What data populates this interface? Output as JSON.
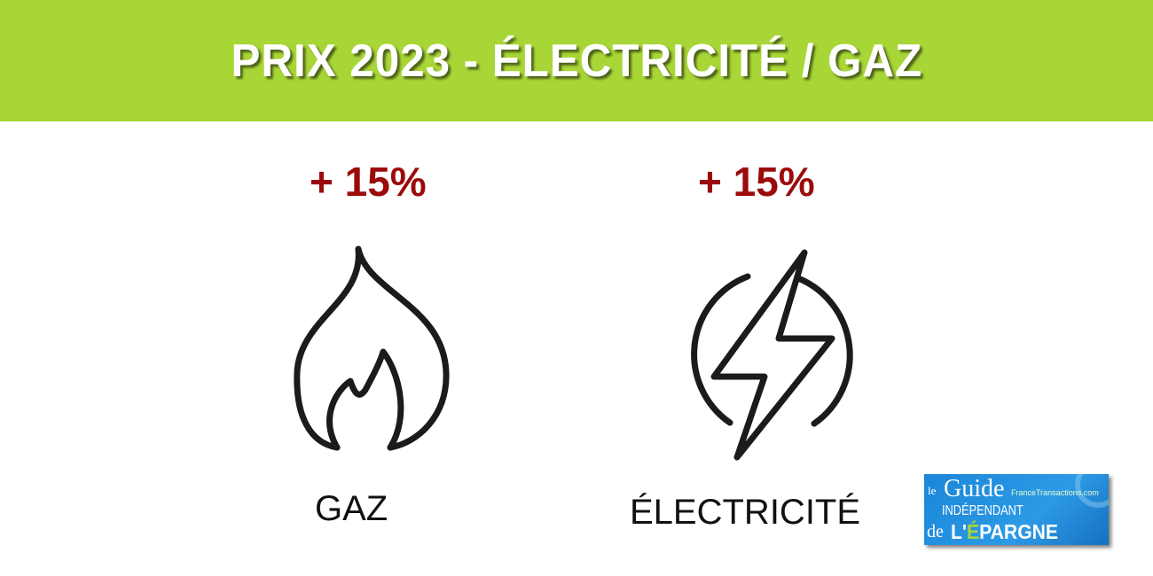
{
  "header": {
    "title": "PRIX 2023 - ÉLECTRICITÉ / GAZ",
    "background": "#a8d636"
  },
  "items": [
    {
      "change": "+ 15%",
      "label": "GAZ",
      "icon": "flame-icon"
    },
    {
      "change": "+ 15%",
      "label": "ÉLECTRICITÉ",
      "icon": "lightning-bolt-circle-icon"
    }
  ],
  "accent_color": "#9b0b0b",
  "logo": {
    "le": "le",
    "guide": "Guide",
    "independant": "INDÉPENDANT",
    "site": "FranceTransactions.com",
    "de": "de",
    "epargne_prefix": "L'",
    "epargne_e": "É",
    "epargne_rest": "PARGNE"
  }
}
